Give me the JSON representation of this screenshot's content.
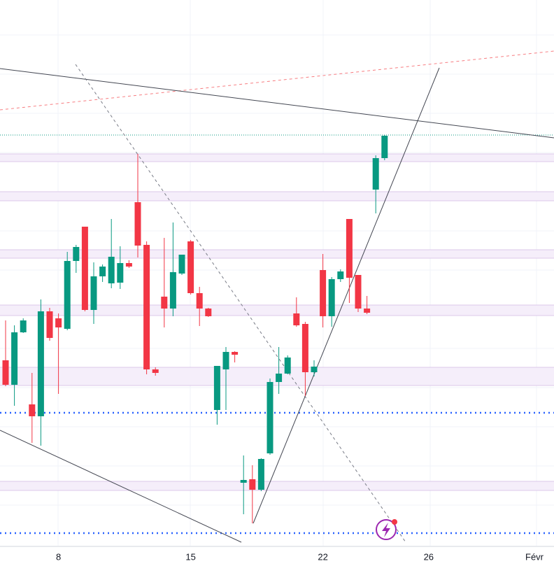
{
  "chart_data": {
    "type": "candlestick",
    "categories": [
      null,
      null,
      null,
      null,
      null,
      null,
      "8",
      null,
      null,
      null,
      null,
      null,
      null,
      null,
      null,
      null,
      null,
      null,
      null,
      null,
      null,
      "15",
      null,
      null,
      null,
      null,
      null,
      null,
      null,
      null,
      null,
      null,
      null,
      null,
      null,
      null,
      "22",
      null,
      null,
      null,
      null,
      null,
      null,
      null,
      null,
      null,
      null,
      null,
      "26",
      null,
      null,
      null,
      null,
      null,
      null,
      null,
      null,
      null,
      null,
      null,
      "Févr",
      null
    ],
    "open": [
      265,
      230,
      305,
      202,
      185,
      335,
      325,
      310,
      407,
      456,
      337,
      385,
      375,
      376,
      404,
      491,
      430,
      252,
      356,
      339,
      389,
      435,
      361,
      339,
      194,
      252,
      277,
      90,
      95,
      80,
      132,
      234,
      246,
      332,
      317,
      248,
      394,
      328,
      381,
      467,
      387,
      339,
      509,
      554,
      null,
      null,
      null,
      null,
      null,
      null,
      null,
      null,
      null,
      null,
      null,
      null,
      null,
      null,
      null,
      null,
      null,
      null
    ],
    "high": [
      322,
      315,
      325,
      247,
      352,
      340,
      332,
      420,
      430,
      456,
      405,
      402,
      467,
      428,
      408,
      560,
      435,
      255,
      440,
      462,
      416,
      437,
      370,
      340,
      257,
      284,
      278,
      129,
      115,
      125,
      239,
      284,
      272,
      355,
      320,
      265,
      417,
      384,
      395,
      467,
      387,
      357,
      558,
      587,
      null,
      null,
      null,
      null,
      null,
      null,
      null,
      null,
      null,
      null,
      null,
      null,
      null,
      null,
      null,
      null,
      null,
      null
    ],
    "low": [
      228,
      200,
      304,
      147,
      143,
      293,
      217,
      308,
      390,
      335,
      317,
      377,
      368,
      367,
      397,
      412,
      245,
      243,
      312,
      328,
      387,
      359,
      314,
      327,
      173,
      194,
      262,
      45,
      32,
      78,
      130,
      217,
      245,
      313,
      214,
      242,
      312,
      313,
      377,
      347,
      334,
      331,
      475,
      551,
      null,
      null,
      null,
      null,
      null,
      null,
      null,
      null,
      null,
      null,
      null,
      null,
      null,
      null,
      null,
      null,
      null,
      null
    ],
    "close": [
      230,
      305,
      322,
      185,
      335,
      297,
      312,
      407,
      427,
      337,
      385,
      399,
      413,
      404,
      399,
      429,
      252,
      247,
      339,
      391,
      416,
      361,
      339,
      328,
      257,
      277,
      273,
      94,
      80,
      124,
      234,
      246,
      269,
      315,
      248,
      256,
      328,
      381,
      392,
      383,
      339,
      333,
      554,
      586,
      null,
      null,
      null,
      null,
      null,
      null,
      null,
      null,
      null,
      null,
      null,
      null,
      null,
      null,
      null,
      null,
      null,
      null
    ],
    "up_color": "#089981",
    "down_color": "#f23645",
    "ylim": [
      0,
      780
    ]
  }
}
